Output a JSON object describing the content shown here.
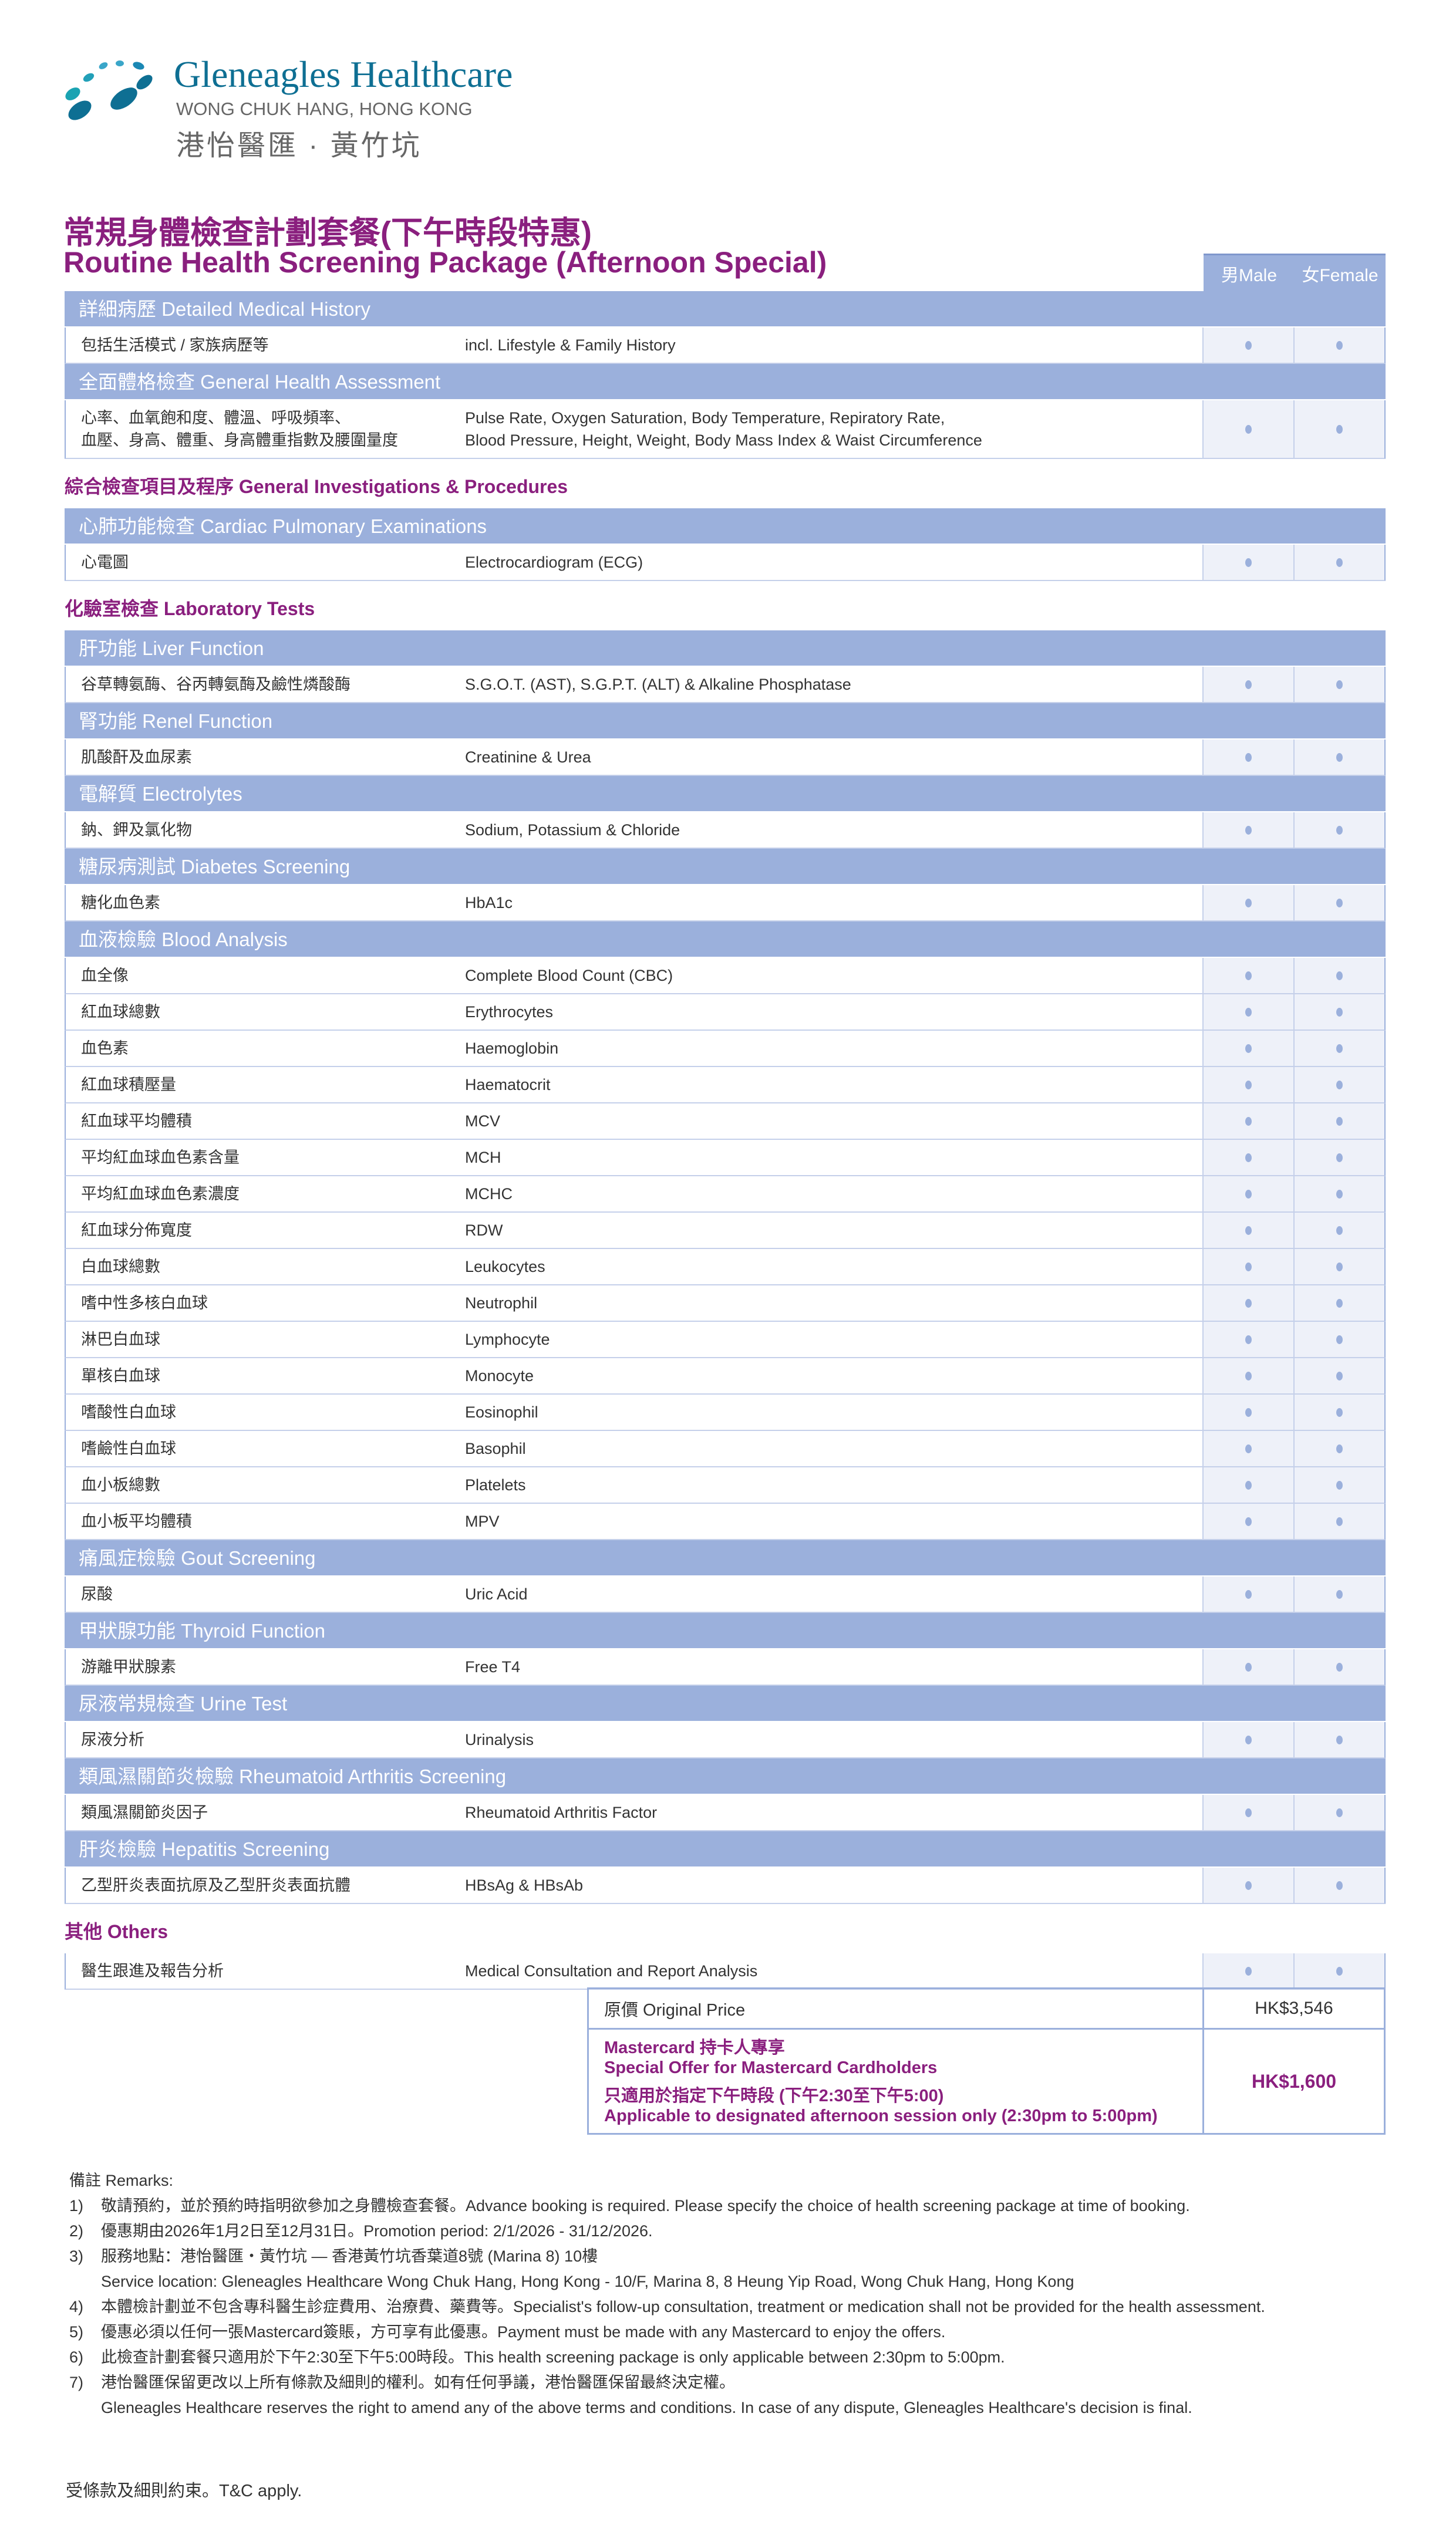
{
  "header": {
    "brand": "Gleneagles Healthcare",
    "location": "WONG CHUK HANG, HONG KONG",
    "zh_name": "港怡醫匯 · 黃竹坑",
    "logo_color": "#0e6f93"
  },
  "title": {
    "zh": "常規身體檢查計劃套餐(下午時段特惠)",
    "en": "Routine Health Screening Package (Afternoon Special)"
  },
  "columns": {
    "male": "男Male",
    "female": "女Female"
  },
  "colors": {
    "accent": "#8a1f7e",
    "section": "#9bb0dc",
    "dot_cell": "#eef1f9"
  },
  "blocks": [
    {
      "type": "section",
      "label": "詳細病歷 Detailed Medical History"
    },
    {
      "type": "item",
      "zh": "包括生活模式 / 家族病歷等",
      "en": "incl. Lifestyle & Family History",
      "male": true,
      "female": true
    },
    {
      "type": "section",
      "label": "全面體格檢查 General Health Assessment"
    },
    {
      "type": "item",
      "tall": true,
      "zh": "心率、血氧飽和度、體溫、呼吸頻率、\n血壓、身高、體重、身高體重指數及腰圍量度",
      "en": "Pulse Rate, Oxygen Saturation, Body Temperature, Repiratory Rate,\nBlood Pressure, Height, Weight, Body Mass Index & Waist Circumference",
      "male": true,
      "female": true
    },
    {
      "type": "group",
      "label": "綜合檢查項目及程序 General Investigations & Procedures"
    },
    {
      "type": "section",
      "label": "心肺功能檢查 Cardiac Pulmonary Examinations"
    },
    {
      "type": "item",
      "zh": "心電圖",
      "en": "Electrocardiogram (ECG)",
      "male": true,
      "female": true
    },
    {
      "type": "group",
      "label": "化驗室檢查 Laboratory Tests"
    },
    {
      "type": "section",
      "label": "肝功能 Liver Function"
    },
    {
      "type": "item",
      "zh": "谷草轉氨酶、谷丙轉氨酶及鹼性燐酸酶",
      "en": "S.G.O.T. (AST), S.G.P.T. (ALT) & Alkaline Phosphatase",
      "male": true,
      "female": true
    },
    {
      "type": "section",
      "label": "腎功能 Renel Function"
    },
    {
      "type": "item",
      "zh": "肌酸酐及血尿素",
      "en": "Creatinine & Urea",
      "male": true,
      "female": true
    },
    {
      "type": "section",
      "label": "電解質 Electrolytes"
    },
    {
      "type": "item",
      "zh": "鈉、鉀及氯化物",
      "en": "Sodium, Potassium & Chloride",
      "male": true,
      "female": true
    },
    {
      "type": "section",
      "label": "糖尿病測試 Diabetes Screening"
    },
    {
      "type": "item",
      "zh": "糖化血色素",
      "en": "HbA1c",
      "male": true,
      "female": true
    },
    {
      "type": "section",
      "label": "血液檢驗 Blood Analysis"
    },
    {
      "type": "item",
      "zh": "血全像",
      "en": "Complete Blood Count (CBC)",
      "male": true,
      "female": true
    },
    {
      "type": "item",
      "zh": "紅血球總數",
      "en": "Erythrocytes",
      "male": true,
      "female": true
    },
    {
      "type": "item",
      "zh": "血色素",
      "en": "Haemoglobin",
      "male": true,
      "female": true
    },
    {
      "type": "item",
      "zh": "紅血球積壓量",
      "en": "Haematocrit",
      "male": true,
      "female": true
    },
    {
      "type": "item",
      "zh": "紅血球平均體積",
      "en": "MCV",
      "male": true,
      "female": true
    },
    {
      "type": "item",
      "zh": "平均紅血球血色素含量",
      "en": "MCH",
      "male": true,
      "female": true
    },
    {
      "type": "item",
      "zh": "平均紅血球血色素濃度",
      "en": "MCHC",
      "male": true,
      "female": true
    },
    {
      "type": "item",
      "zh": "紅血球分佈寬度",
      "en": "RDW",
      "male": true,
      "female": true
    },
    {
      "type": "item",
      "zh": "白血球總數",
      "en": "Leukocytes",
      "male": true,
      "female": true
    },
    {
      "type": "item",
      "zh": "嗜中性多核白血球",
      "en": "Neutrophil",
      "male": true,
      "female": true
    },
    {
      "type": "item",
      "zh": "淋巴白血球",
      "en": "Lymphocyte",
      "male": true,
      "female": true
    },
    {
      "type": "item",
      "zh": "單核白血球",
      "en": "Monocyte",
      "male": true,
      "female": true
    },
    {
      "type": "item",
      "zh": "嗜酸性白血球",
      "en": "Eosinophil",
      "male": true,
      "female": true
    },
    {
      "type": "item",
      "zh": "嗜鹼性白血球",
      "en": "Basophil",
      "male": true,
      "female": true
    },
    {
      "type": "item",
      "zh": "血小板總數",
      "en": "Platelets",
      "male": true,
      "female": true
    },
    {
      "type": "item",
      "zh": "血小板平均體積",
      "en": "MPV",
      "male": true,
      "female": true
    },
    {
      "type": "section",
      "label": "痛風症檢驗 Gout Screening"
    },
    {
      "type": "item",
      "zh": "尿酸",
      "en": "Uric Acid",
      "male": true,
      "female": true
    },
    {
      "type": "section",
      "label": "甲狀腺功能 Thyroid Function"
    },
    {
      "type": "item",
      "zh": "游離甲狀腺素",
      "en": "Free T4",
      "male": true,
      "female": true
    },
    {
      "type": "section",
      "label": "尿液常規檢查 Urine Test"
    },
    {
      "type": "item",
      "zh": "尿液分析",
      "en": "Urinalysis",
      "male": true,
      "female": true
    },
    {
      "type": "section",
      "label": "類風濕關節炎檢驗 Rheumatoid Arthritis Screening"
    },
    {
      "type": "item",
      "zh": "類風濕關節炎因子",
      "en": "Rheumatoid Arthritis Factor",
      "male": true,
      "female": true
    },
    {
      "type": "section",
      "label": "肝炎檢驗 Hepatitis Screening"
    },
    {
      "type": "item",
      "zh": "乙型肝炎表面抗原及乙型肝炎表面抗體",
      "en": "HBsAg & HBsAb",
      "male": true,
      "female": true
    },
    {
      "type": "group",
      "label": "其他 Others"
    },
    {
      "type": "item",
      "zh": "醫生跟進及報告分析",
      "en": "Medical Consultation and Report Analysis",
      "male": true,
      "female": true
    }
  ],
  "price": {
    "original_label": "原價 Original Price",
    "original_value": "HK$3,546",
    "special_zh": "Mastercard 持卡人專享",
    "special_en": "Special Offer for Mastercard Cardholders",
    "session_zh": "只適用於指定下午時段 (下午2:30至下午5:00)",
    "session_en": "Applicable to designated afternoon session only (2:30pm to 5:00pm)",
    "special_value": "HK$1,600"
  },
  "remarks": {
    "title": "備註 Remarks:",
    "items": [
      {
        "n": "1)",
        "lines": [
          "敬請預約，並於預約時指明欲參加之身體檢查套餐。Advance booking is required. Please specify the choice of health screening package at time of booking."
        ]
      },
      {
        "n": "2)",
        "lines": [
          "優惠期由2026年1月2日至12月31日。Promotion period: 2/1/2026 - 31/12/2026."
        ]
      },
      {
        "n": "3)",
        "lines": [
          "服務地點：港怡醫匯・黃竹坑 — 香港黃竹坑香葉道8號 (Marina 8) 10樓",
          "Service location: Gleneagles Healthcare Wong Chuk Hang, Hong Kong - 10/F, Marina 8, 8 Heung Yip Road, Wong Chuk Hang, Hong Kong"
        ]
      },
      {
        "n": "4)",
        "lines": [
          "本體檢計劃並不包含專科醫生診症費用、治療費、藥費等。Specialist's follow-up consultation, treatment or medication shall not be provided for the health assessment."
        ]
      },
      {
        "n": "5)",
        "lines": [
          "優惠必須以任何一張Mastercard簽賬，方可享有此優惠。Payment must be made with any Mastercard to enjoy the offers."
        ]
      },
      {
        "n": "6)",
        "lines": [
          "此檢查計劃套餐只適用於下午2:30至下午5:00時段。This health screening package is only applicable between 2:30pm to 5:00pm."
        ]
      },
      {
        "n": "7)",
        "lines": [
          "港怡醫匯保留更改以上所有條款及細則的權利。如有任何爭議，港怡醫匯保留最終決定權。",
          "Gleneagles Healthcare reserves the right to amend any of the above terms and conditions. In case of any dispute, Gleneagles Healthcare's decision is final."
        ]
      }
    ]
  },
  "footer": {
    "tc": "受條款及細則約束。T&C apply."
  }
}
